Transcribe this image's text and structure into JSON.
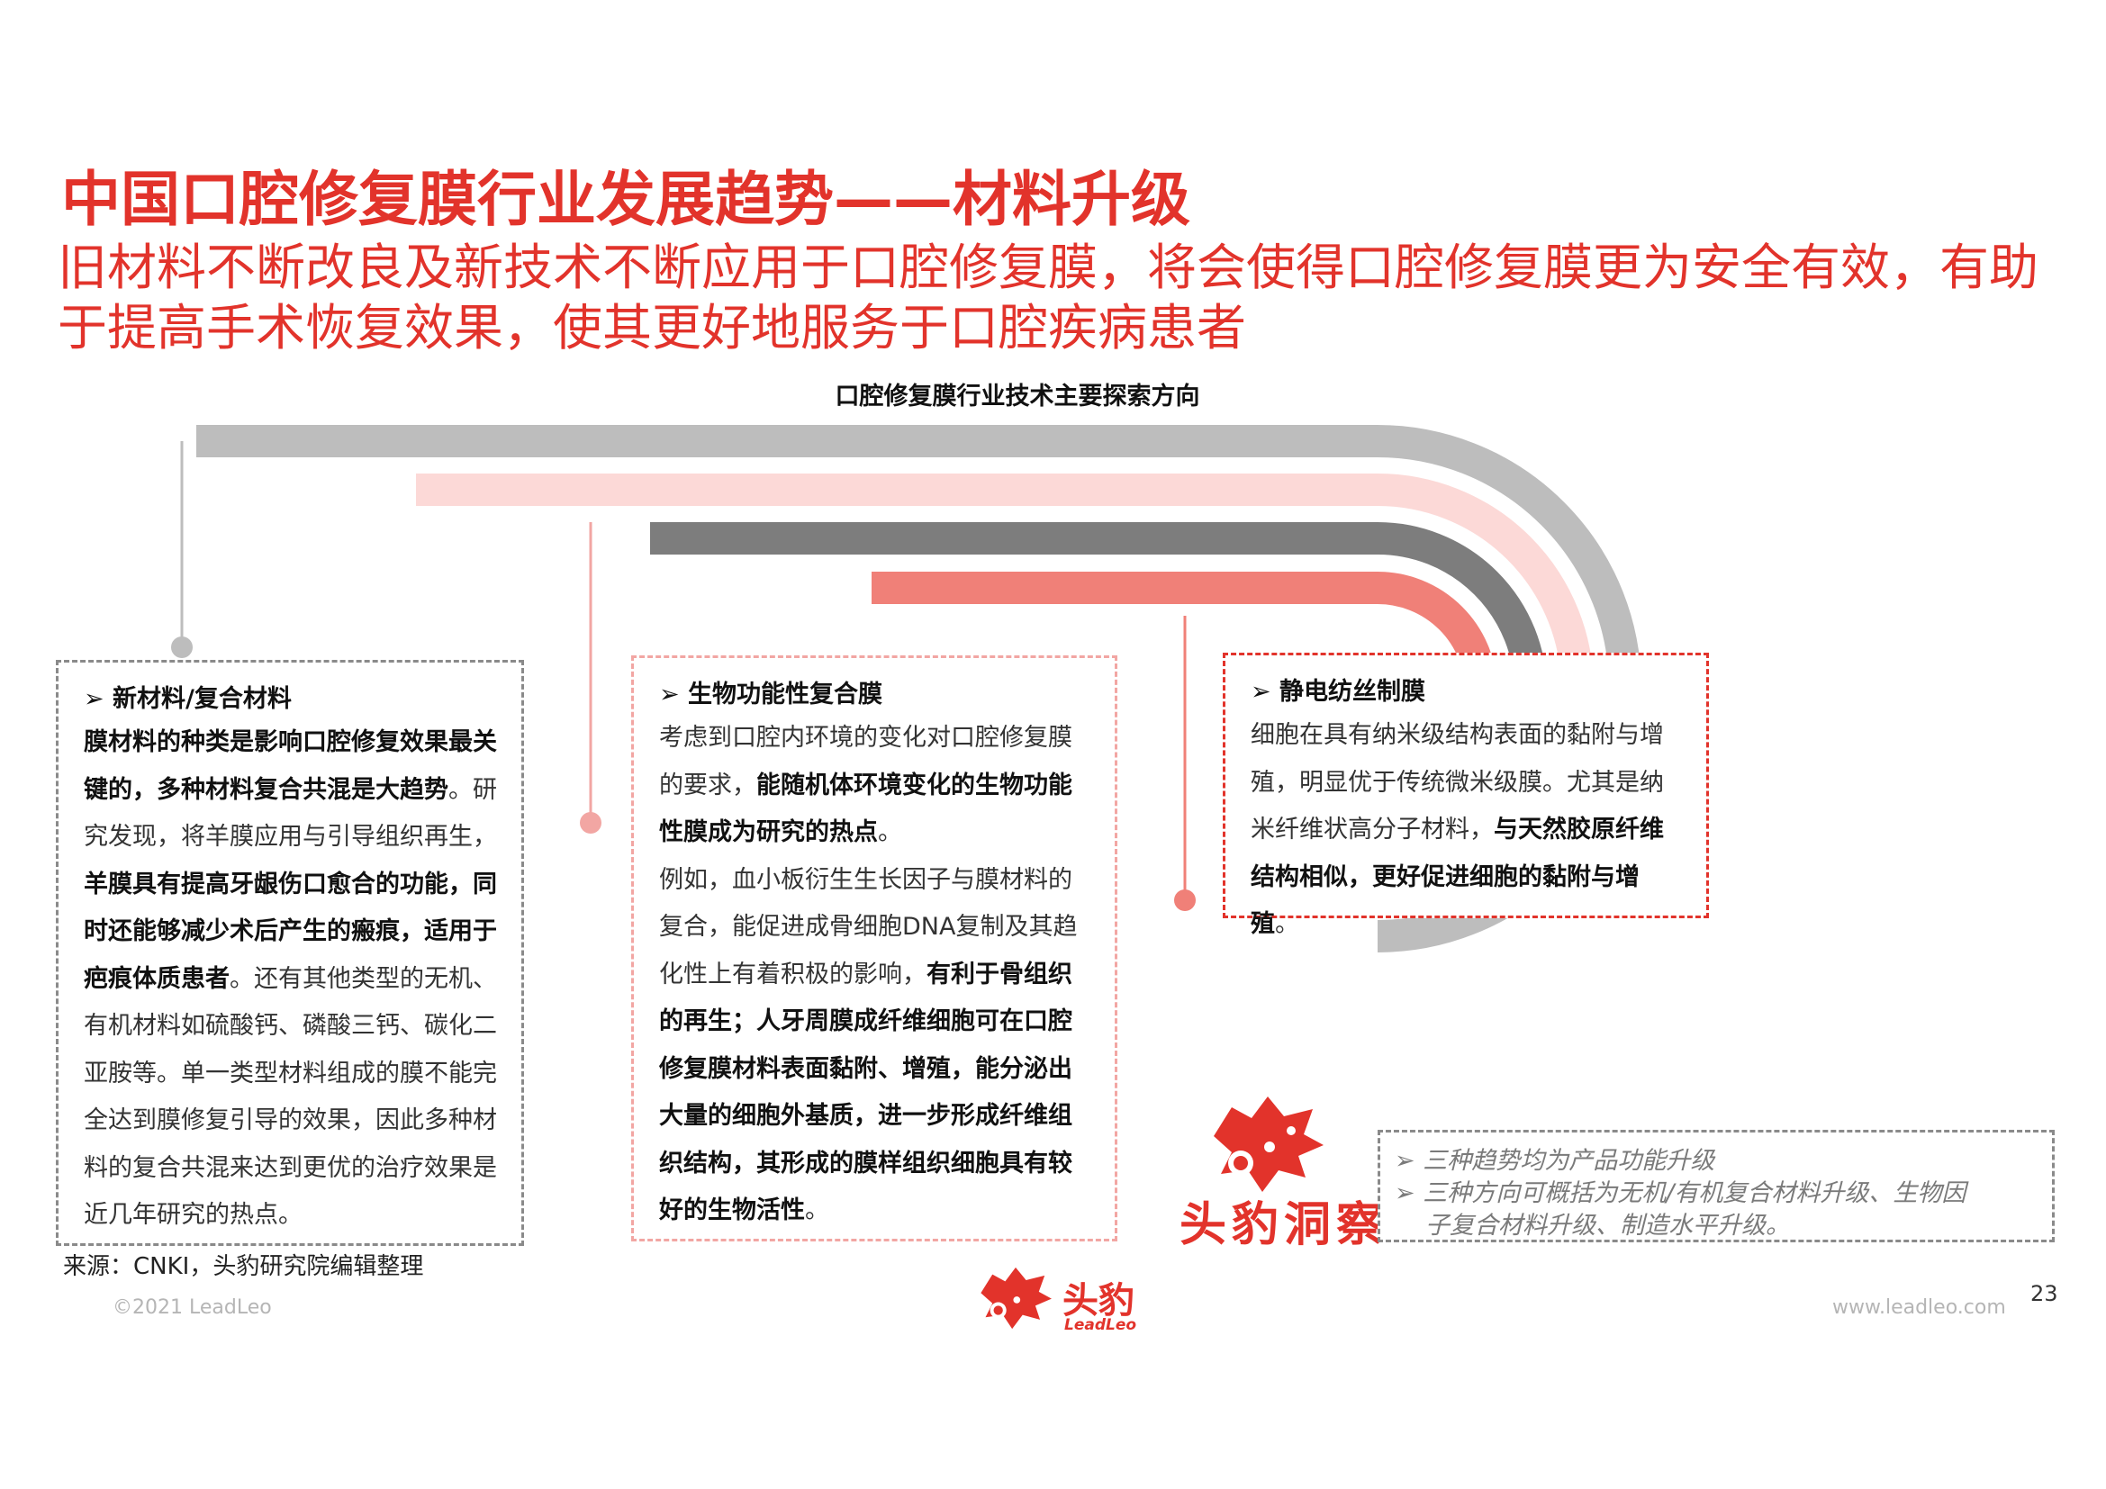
{
  "header": {
    "title": "中国口腔修复膜行业发展趋势——材料升级",
    "subtitle": "旧材料不断改良及新技术不断应用于口腔修复膜，将会使得口腔修复膜更为安全有效，有助于提高手术恢复效果，使其更好地服务于口腔疾病患者"
  },
  "chart_title": "口腔修复膜行业技术主要探索方向",
  "colors": {
    "accent": "#e2332b",
    "gray": "#bdbdbd",
    "light_pink": "#fcd9d7",
    "dark_gray": "#7d7d7d",
    "salmon": "#f08078"
  },
  "boxes": {
    "b1": {
      "heading": "新材料/复合材料",
      "s1": "膜材料的种类是影响口腔修复效果最关键的，多种材料复合共混是大趋势",
      "s2": "。研究发现，将羊膜应用与引导组织再生，",
      "s3": "羊膜具有提高牙龈伤口愈合的功能，同时还能够减少术后产生的瘢痕，适用于疤痕体质患者",
      "s4": "。还有其他类型的无机、有机材料如硫酸钙、磷酸三钙、碳化二亚胺等。单一类型材料组成的膜不能完全达到膜修复引导的效果，因此多种材料的复合共混来达到更优的治疗效果是近几年研究的热点。"
    },
    "b2": {
      "heading": "生物功能性复合膜",
      "s1": "考虑到口腔内环境的变化对口腔修复膜的要求，",
      "s2": "能随机体环境变化的生物功能性膜成为研究的热点",
      "s3": "。",
      "s4": "例如，血小板衍生生长因子与膜材料的复合，能促进成骨细胞DNA复制及其趋化性上有着积极的影响，",
      "s5": "有利于骨组织的再生；人牙周膜成纤维细胞可在口腔修复膜材料表面黏附、增殖，能分泌出大量的细胞外基质，进一步形成纤维组织结构，其形成的膜样组织细胞具有较好的生物活性",
      "s6": "。"
    },
    "b3": {
      "heading": "静电纺丝制膜",
      "s1": "细胞在具有纳米级结构表面的黏附与增殖，明显优于传统微米级膜。尤其是纳米纤维状高分子材料，",
      "s2": "与天然胶原纤维结构相似，更好促进细胞的黏附与增殖",
      "s3": "。"
    },
    "b4": {
      "line1": "三种趋势均为产品功能升级",
      "line2a": "三种方向可概括为无机/有机复合材料升级、生物因",
      "line2b": "子复合材料升级、制造水平升级。"
    }
  },
  "bullet": "➢",
  "watermark": "头豹洞察",
  "source": "来源：CNKI，头豹研究院编辑整理",
  "footer": {
    "copyright": "©2021 LeadLeo",
    "website": "www.leadleo.com",
    "page": "23",
    "logo_cn": "头豹",
    "logo_en": "LeadLeo"
  }
}
